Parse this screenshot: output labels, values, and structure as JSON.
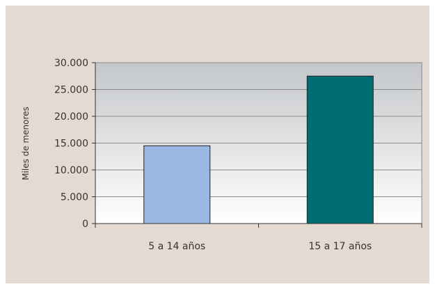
{
  "chart_data": {
    "type": "bar",
    "title": "",
    "xlabel": "",
    "ylabel": "Miles de menores",
    "categories": [
      "5 a 14 años",
      "15 a 17 años"
    ],
    "values": [
      14500,
      27500
    ],
    "ylim": [
      0,
      30000
    ],
    "yticks": [
      0,
      5000,
      10000,
      15000,
      20000,
      25000,
      30000
    ],
    "ytick_labels": [
      "0",
      "5.000",
      "10.000",
      "15.000",
      "20.000",
      "25.000",
      "30.000"
    ],
    "grid": true,
    "legend": "none",
    "colors": {
      "bars": [
        "#9ab8e2",
        "#006d75"
      ],
      "background": "#e4dad2",
      "plot_top": "#c4c7ca",
      "plot_bottom": "#ffffff"
    }
  }
}
